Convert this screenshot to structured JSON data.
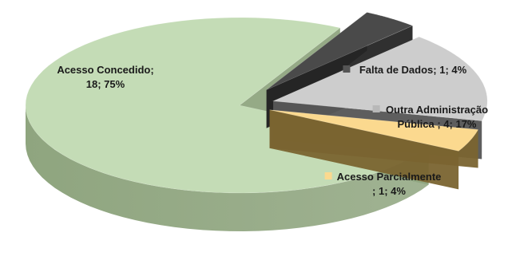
{
  "chart_data": {
    "type": "pie",
    "style": "3d-exploded",
    "slices": [
      {
        "name": "Acesso Concedido",
        "value": 18,
        "percent": "75%",
        "label_lines": [
          "Acesso Concedido;",
          "18; 75%"
        ],
        "color": "#c4dcb6",
        "side_color": "#8fa57f",
        "marker": false
      },
      {
        "name": "Falta de Dados",
        "value": 1,
        "percent": "4%",
        "label_lines": [
          "Falta de Dados; 1; 4%"
        ],
        "color": "#4a4a4a",
        "side_color": "#252525",
        "marker_color": "#555555",
        "marker": true
      },
      {
        "name": "Outra Administração Pública",
        "value": 4,
        "percent": "17%",
        "label_lines": [
          "Outra Administração",
          "Pública ; 4; 17%"
        ],
        "color": "#cdcdcd",
        "side_color": "#555555",
        "marker_color": "#b8b8b8",
        "marker": true
      },
      {
        "name": "Acesso Parcialmente",
        "value": 1,
        "percent": "4%",
        "label_lines": [
          "Acesso Parcialmente",
          "; 1; 4%"
        ],
        "color": "#fbd98f",
        "side_color": "#7a6430",
        "marker_color": "#fbd98f",
        "marker": true
      }
    ]
  }
}
